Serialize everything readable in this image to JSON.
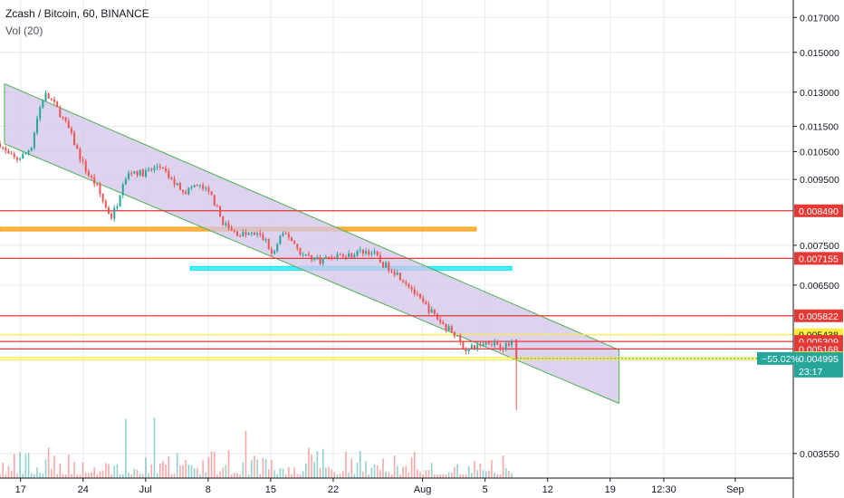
{
  "legend": {
    "symbol_line": "Zcash / Bitcoin, 60, BINANCE",
    "volume_line": "Vol (20)"
  },
  "chart_data": {
    "type": "candlestick",
    "title": "Zcash / Bitcoin, 60, BINANCE",
    "indicator": "Vol (20)",
    "y_axis": {
      "scale": "log",
      "ylim": [
        0.00325,
        0.0181
      ],
      "ticks": [
        "0.017000",
        "0.015000",
        "0.013000",
        "0.011500",
        "0.010500",
        "0.009500",
        "0.007500",
        "0.006500",
        "0.003550"
      ],
      "tick_values": [
        0.017,
        0.015,
        0.013,
        0.0115,
        0.0105,
        0.0095,
        0.0075,
        0.0065,
        0.00355
      ]
    },
    "x_axis": {
      "ticks": [
        "17",
        "24",
        "Jul",
        "8",
        "15",
        "22",
        "Aug",
        "5",
        "12",
        "19",
        "12:30",
        "Sep"
      ],
      "tick_days": [
        0,
        7,
        14,
        21,
        28,
        35,
        45,
        52,
        59,
        66,
        72,
        80
      ],
      "xlim": [
        -2.3,
        86.5
      ]
    },
    "price_path": [
      [
        -2.3,
        0.0108
      ],
      [
        -1.5,
        0.0104
      ],
      [
        -0.5,
        0.0102
      ],
      [
        0.5,
        0.0104
      ],
      [
        1.2,
        0.0107
      ],
      [
        2.0,
        0.0121
      ],
      [
        2.7,
        0.0129
      ],
      [
        3.5,
        0.0126
      ],
      [
        4.5,
        0.012
      ],
      [
        5.5,
        0.0113
      ],
      [
        6.5,
        0.0104
      ],
      [
        7.5,
        0.0097
      ],
      [
        8.5,
        0.0093
      ],
      [
        9.5,
        0.0086
      ],
      [
        10.2,
        0.0083
      ],
      [
        10.8,
        0.0087
      ],
      [
        11.5,
        0.0095
      ],
      [
        12.5,
        0.0098
      ],
      [
        13.5,
        0.0097
      ],
      [
        14.5,
        0.0098
      ],
      [
        15.5,
        0.01
      ],
      [
        16.5,
        0.0096
      ],
      [
        17.5,
        0.0093
      ],
      [
        18.5,
        0.0091
      ],
      [
        19.5,
        0.0093
      ],
      [
        20.5,
        0.0092
      ],
      [
        21.5,
        0.0089
      ],
      [
        22.5,
        0.0082
      ],
      [
        23.5,
        0.0079
      ],
      [
        24.5,
        0.0078
      ],
      [
        25.5,
        0.0078
      ],
      [
        26.5,
        0.0078
      ],
      [
        27.5,
        0.0076
      ],
      [
        28.2,
        0.0072
      ],
      [
        29.0,
        0.0077
      ],
      [
        29.8,
        0.0078
      ],
      [
        30.5,
        0.0076
      ],
      [
        31.5,
        0.00725
      ],
      [
        32.5,
        0.0072
      ],
      [
        33.5,
        0.0071
      ],
      [
        34.5,
        0.0072
      ],
      [
        35.5,
        0.00725
      ],
      [
        36.5,
        0.0072
      ],
      [
        37.5,
        0.0073
      ],
      [
        38.5,
        0.00735
      ],
      [
        39.5,
        0.0073
      ],
      [
        40.5,
        0.007
      ],
      [
        41.5,
        0.0069
      ],
      [
        42.5,
        0.0067
      ],
      [
        43.5,
        0.0065
      ],
      [
        44.5,
        0.0062
      ],
      [
        45.5,
        0.006
      ],
      [
        46.5,
        0.0058
      ],
      [
        47.5,
        0.0056
      ],
      [
        48.5,
        0.0055
      ],
      [
        49.3,
        0.00525
      ],
      [
        50.0,
        0.00515
      ],
      [
        50.8,
        0.0052
      ],
      [
        51.5,
        0.00525
      ],
      [
        52.3,
        0.0053
      ],
      [
        53.0,
        0.0053
      ],
      [
        53.8,
        0.00522
      ],
      [
        54.4,
        0.00522
      ],
      [
        55.0,
        0.0053
      ],
      [
        55.3,
        0.0055
      ]
    ],
    "last_price": 0.004995,
    "change_pct": "−55.02%",
    "countdown": "23:17",
    "channel": {
      "upper": [
        [
          -1.8,
          0.0134
        ],
        [
          67.0,
          0.00515
        ]
      ],
      "lower": [
        [
          -1.8,
          0.0108
        ],
        [
          67.0,
          0.00425
        ]
      ],
      "fill": "#d1c4e9",
      "stroke": "#4caf50"
    },
    "horizontal_levels": [
      {
        "value": 0.00849,
        "label": "0.008490",
        "color": "#e53935",
        "style": "solid"
      },
      {
        "value": 0.007155,
        "label": "0.007155",
        "color": "#e53935",
        "style": "solid"
      },
      {
        "value": 0.005822,
        "label": "0.005822",
        "color": "#e53935",
        "style": "solid"
      },
      {
        "value": 0.005438,
        "label": "0.005438",
        "color": "#ffeb3b",
        "style": "solid"
      },
      {
        "value": 0.005309,
        "label": "0.005309",
        "color": "#e53935",
        "style": "solid"
      },
      {
        "value": 0.005168,
        "label": "0.005168",
        "color": "#e53935",
        "style": "solid"
      },
      {
        "value": 0.005009,
        "label": "0.005009",
        "color": "#ffeb3b",
        "style": "solid"
      },
      {
        "value": 0.004968,
        "label": "0.004968",
        "color": "#ffeb3b",
        "style": "solid"
      }
    ],
    "zones": [
      {
        "y_top": 0.008,
        "y_bottom": 0.00792,
        "x_start": -2.3,
        "x_end": 51.0,
        "color": "#ff9800"
      },
      {
        "y_top": 0.00695,
        "y_bottom": 0.00686,
        "x_start": 19.0,
        "x_end": 55.0,
        "color": "#00e5ff"
      }
    ],
    "colors": {
      "up": "#26a69a",
      "down": "#ef5350",
      "grid": "#e8eaed",
      "axis_text": "#131722",
      "last_price_badge": "#26a69a"
    }
  }
}
